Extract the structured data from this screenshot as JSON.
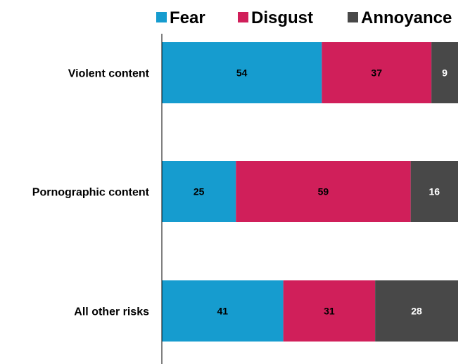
{
  "chart_data": {
    "type": "bar",
    "orientation": "horizontal",
    "stacked": true,
    "categories": [
      "Violent content",
      "Pornographic content",
      "All other risks"
    ],
    "series": [
      {
        "name": "Fear",
        "values": [
          54,
          25,
          41
        ],
        "color": "#169ccf",
        "label_color": "#000000"
      },
      {
        "name": "Disgust",
        "values": [
          37,
          59,
          31
        ],
        "color": "#d01f5a",
        "label_color": "#000000"
      },
      {
        "name": "Annoyance",
        "values": [
          9,
          16,
          28
        ],
        "color": "#484848",
        "label_color": "#ffffff"
      }
    ],
    "xlim": [
      0,
      100
    ],
    "legend_position": "top",
    "grid": false
  }
}
